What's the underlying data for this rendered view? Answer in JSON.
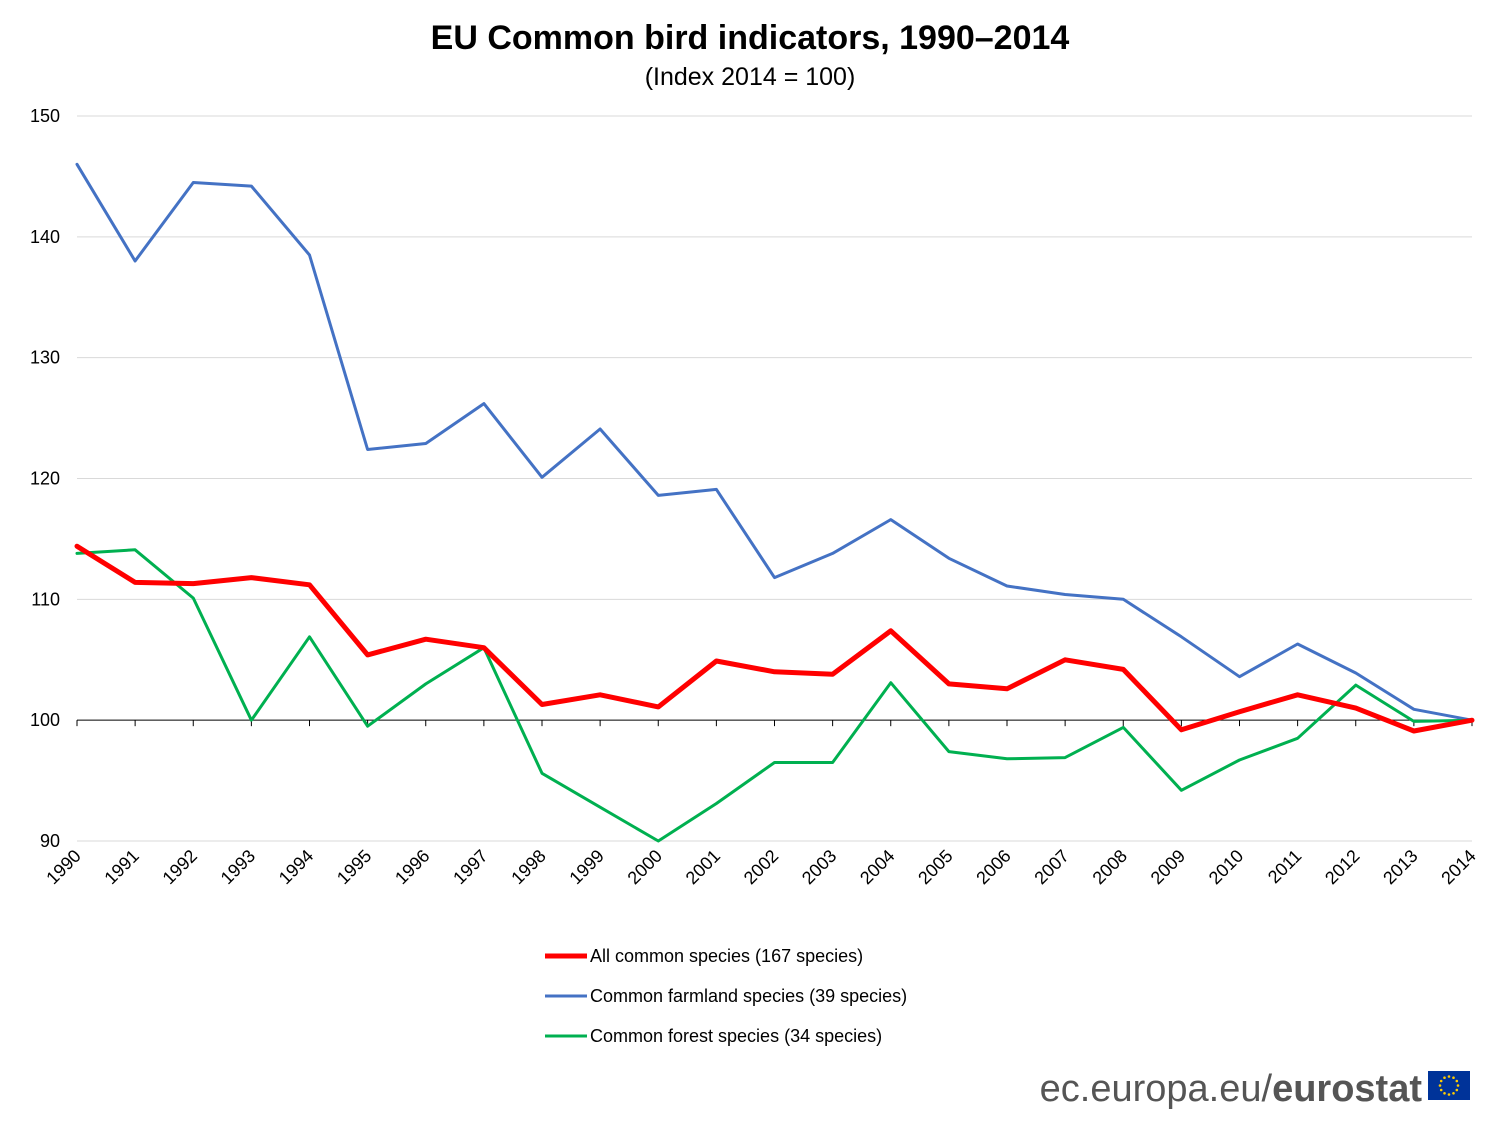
{
  "chart_data": {
    "type": "line",
    "title": "EU Common bird indicators, 1990–2014",
    "subtitle": "(Index 2014 = 100)",
    "xlabel": "",
    "ylabel": "",
    "categories": [
      "1990",
      "1991",
      "1992",
      "1993",
      "1994",
      "1995",
      "1996",
      "1997",
      "1998",
      "1999",
      "2000",
      "2001",
      "2002",
      "2003",
      "2004",
      "2005",
      "2006",
      "2007",
      "2008",
      "2009",
      "2010",
      "2011",
      "2012",
      "2013",
      "2014"
    ],
    "ylim": [
      90,
      150
    ],
    "yticks": [
      "90",
      "100",
      "110",
      "120",
      "130",
      "140",
      "150"
    ],
    "grid": true,
    "legend_position": "bottom",
    "series": [
      {
        "name": "All common species (167 species)",
        "color": "#ff0000",
        "values": [
          114.4,
          111.4,
          111.3,
          111.8,
          111.2,
          105.4,
          106.7,
          106.0,
          101.3,
          102.1,
          101.1,
          104.9,
          104.0,
          103.8,
          107.4,
          103.0,
          102.6,
          105.0,
          104.2,
          99.2,
          100.7,
          102.1,
          101.0,
          99.1,
          100.0
        ]
      },
      {
        "name": "Common farmland species (39 species)",
        "color": "#4472c4",
        "values": [
          146.0,
          138.0,
          144.5,
          144.2,
          138.5,
          122.4,
          122.9,
          126.2,
          120.1,
          124.1,
          118.6,
          119.1,
          111.8,
          113.8,
          116.6,
          113.4,
          111.1,
          110.4,
          110.0,
          106.9,
          103.6,
          106.3,
          103.9,
          100.9,
          100.0
        ]
      },
      {
        "name": "Common forest species (34 species)",
        "color": "#00b050",
        "values": [
          113.8,
          114.1,
          110.1,
          100.0,
          106.9,
          99.5,
          103.0,
          106.0,
          95.6,
          92.8,
          90.0,
          93.1,
          96.5,
          96.5,
          103.1,
          97.4,
          96.8,
          96.9,
          99.4,
          94.2,
          96.7,
          98.5,
          102.9,
          99.9,
          100.0
        ]
      }
    ]
  },
  "branding": {
    "site": "ec.europa.eu/",
    "name": "eurostat",
    "flag_color": "#003399",
    "star_color": "#ffcc00"
  }
}
